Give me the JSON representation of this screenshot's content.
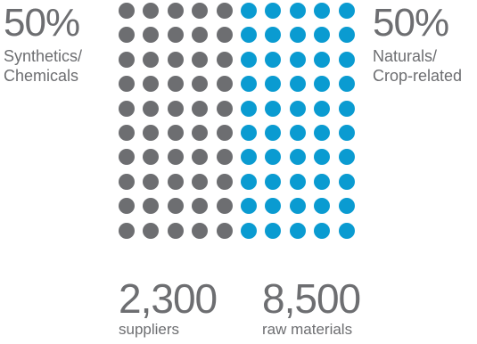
{
  "left_stat": {
    "percent": "50%",
    "label_line1": "Synthetics/",
    "label_line2": "Chemicals"
  },
  "right_stat": {
    "percent": "50%",
    "label_line1": "Naturals/",
    "label_line2": "Crop-related"
  },
  "counts": {
    "suppliers_value": "2,300",
    "suppliers_label": "suppliers",
    "materials_value": "8,500",
    "materials_label": "raw materials"
  },
  "colors": {
    "synthetics": "#6d6e71",
    "naturals": "#0a9bd1",
    "text": "#6d6e71"
  },
  "chart_data": {
    "type": "waffle",
    "rows": 10,
    "columns": 10,
    "series": [
      {
        "name": "Synthetics/Chemicals",
        "values": [
          50
        ],
        "color": "#6d6e71"
      },
      {
        "name": "Naturals/Crop-related",
        "values": [
          50
        ],
        "color": "#0a9bd1"
      }
    ]
  }
}
